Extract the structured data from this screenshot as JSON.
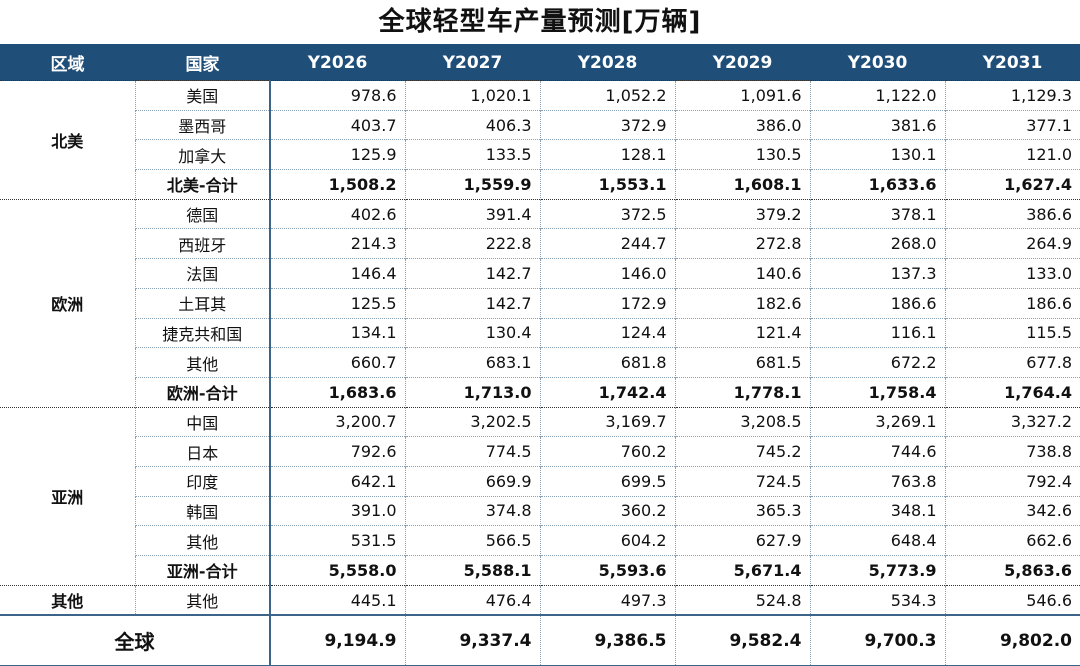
{
  "title": "全球轻型车产量预测[万辆]",
  "chart_data": {
    "type": "table",
    "title": "全球轻型车产量预测[万辆]",
    "columns": [
      "区域",
      "国家",
      "Y2026",
      "Y2027",
      "Y2028",
      "Y2029",
      "Y2030",
      "Y2031"
    ],
    "regions": [
      {
        "name": "北美",
        "rows": [
          {
            "country": "美国",
            "values": [
              "978.6",
              "1,020.1",
              "1,052.2",
              "1,091.6",
              "1,122.0",
              "1,129.3"
            ]
          },
          {
            "country": "墨西哥",
            "values": [
              "403.7",
              "406.3",
              "372.9",
              "386.0",
              "381.6",
              "377.1"
            ]
          },
          {
            "country": "加拿大",
            "values": [
              "125.9",
              "133.5",
              "128.1",
              "130.5",
              "130.1",
              "121.0"
            ]
          },
          {
            "country": "北美-合计",
            "total": true,
            "values": [
              "1,508.2",
              "1,559.9",
              "1,553.1",
              "1,608.1",
              "1,633.6",
              "1,627.4"
            ]
          }
        ]
      },
      {
        "name": "欧洲",
        "rows": [
          {
            "country": "德国",
            "values": [
              "402.6",
              "391.4",
              "372.5",
              "379.2",
              "378.1",
              "386.6"
            ]
          },
          {
            "country": "西班牙",
            "values": [
              "214.3",
              "222.8",
              "244.7",
              "272.8",
              "268.0",
              "264.9"
            ]
          },
          {
            "country": "法国",
            "values": [
              "146.4",
              "142.7",
              "146.0",
              "140.6",
              "137.3",
              "133.0"
            ]
          },
          {
            "country": "土耳其",
            "values": [
              "125.5",
              "142.7",
              "172.9",
              "182.6",
              "186.6",
              "186.6"
            ]
          },
          {
            "country": "捷克共和国",
            "values": [
              "134.1",
              "130.4",
              "124.4",
              "121.4",
              "116.1",
              "115.5"
            ]
          },
          {
            "country": "其他",
            "values": [
              "660.7",
              "683.1",
              "681.8",
              "681.5",
              "672.2",
              "677.8"
            ]
          },
          {
            "country": "欧洲-合计",
            "total": true,
            "values": [
              "1,683.6",
              "1,713.0",
              "1,742.4",
              "1,778.1",
              "1,758.4",
              "1,764.4"
            ]
          }
        ]
      },
      {
        "name": "亚洲",
        "rows": [
          {
            "country": "中国",
            "values": [
              "3,200.7",
              "3,202.5",
              "3,169.7",
              "3,208.5",
              "3,269.1",
              "3,327.2"
            ]
          },
          {
            "country": "日本",
            "values": [
              "792.6",
              "774.5",
              "760.2",
              "745.2",
              "744.6",
              "738.8"
            ]
          },
          {
            "country": "印度",
            "values": [
              "642.1",
              "669.9",
              "699.5",
              "724.5",
              "763.8",
              "792.4"
            ]
          },
          {
            "country": "韩国",
            "values": [
              "391.0",
              "374.8",
              "360.2",
              "365.3",
              "348.1",
              "342.6"
            ]
          },
          {
            "country": "其他",
            "values": [
              "531.5",
              "566.5",
              "604.2",
              "627.9",
              "648.4",
              "662.6"
            ]
          },
          {
            "country": "亚洲-合计",
            "total": true,
            "values": [
              "5,558.0",
              "5,588.1",
              "5,593.6",
              "5,671.4",
              "5,773.9",
              "5,863.6"
            ]
          }
        ]
      },
      {
        "name": "其他",
        "rows": [
          {
            "country": "其他",
            "values": [
              "445.1",
              "476.4",
              "497.3",
              "524.8",
              "534.3",
              "546.6"
            ]
          }
        ]
      }
    ],
    "global": {
      "label": "全球",
      "values": [
        "9,194.9",
        "9,337.4",
        "9,386.5",
        "9,582.4",
        "9,700.3",
        "9,802.0"
      ]
    },
    "colors": {
      "header": "#1f4e79",
      "header_text": "#ffffff"
    }
  }
}
